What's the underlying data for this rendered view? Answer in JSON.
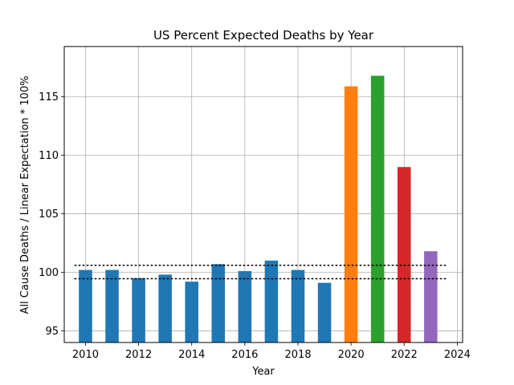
{
  "chart_data": {
    "type": "bar",
    "title": "US Percent Expected Deaths by Year",
    "xlabel": "Year",
    "ylabel": "All Cause Deaths / Linear Expectation * 100%",
    "xlim": [
      2009.2,
      2024.2
    ],
    "ylim": [
      94.0,
      119.3
    ],
    "x_ticks": [
      2010,
      2012,
      2014,
      2016,
      2018,
      2020,
      2022,
      2024
    ],
    "y_ticks": [
      95,
      100,
      105,
      110,
      115
    ],
    "grid": true,
    "bar_width_years": 0.5,
    "bars": [
      {
        "x": 2010,
        "value": 100.2,
        "color": "#1f77b4"
      },
      {
        "x": 2011,
        "value": 100.2,
        "color": "#1f77b4"
      },
      {
        "x": 2012,
        "value": 99.5,
        "color": "#1f77b4"
      },
      {
        "x": 2013,
        "value": 99.8,
        "color": "#1f77b4"
      },
      {
        "x": 2014,
        "value": 99.2,
        "color": "#1f77b4"
      },
      {
        "x": 2015,
        "value": 100.7,
        "color": "#1f77b4"
      },
      {
        "x": 2016,
        "value": 100.1,
        "color": "#1f77b4"
      },
      {
        "x": 2017,
        "value": 101.0,
        "color": "#1f77b4"
      },
      {
        "x": 2018,
        "value": 100.2,
        "color": "#1f77b4"
      },
      {
        "x": 2019,
        "value": 99.1,
        "color": "#1f77b4"
      },
      {
        "x": 2020,
        "value": 115.9,
        "color": "#ff7f0e"
      },
      {
        "x": 2021,
        "value": 116.8,
        "color": "#2ca02c"
      },
      {
        "x": 2022,
        "value": 109.0,
        "color": "#d62728"
      },
      {
        "x": 2023,
        "value": 101.8,
        "color": "#9467bd"
      }
    ],
    "reference_lines": [
      {
        "y": 100.6,
        "x_start": 2009.6,
        "x_end": 2023.6,
        "style": "dotted",
        "color": "#000000"
      },
      {
        "y": 99.45,
        "x_start": 2009.6,
        "x_end": 2023.6,
        "style": "dotted",
        "color": "#000000"
      }
    ]
  }
}
